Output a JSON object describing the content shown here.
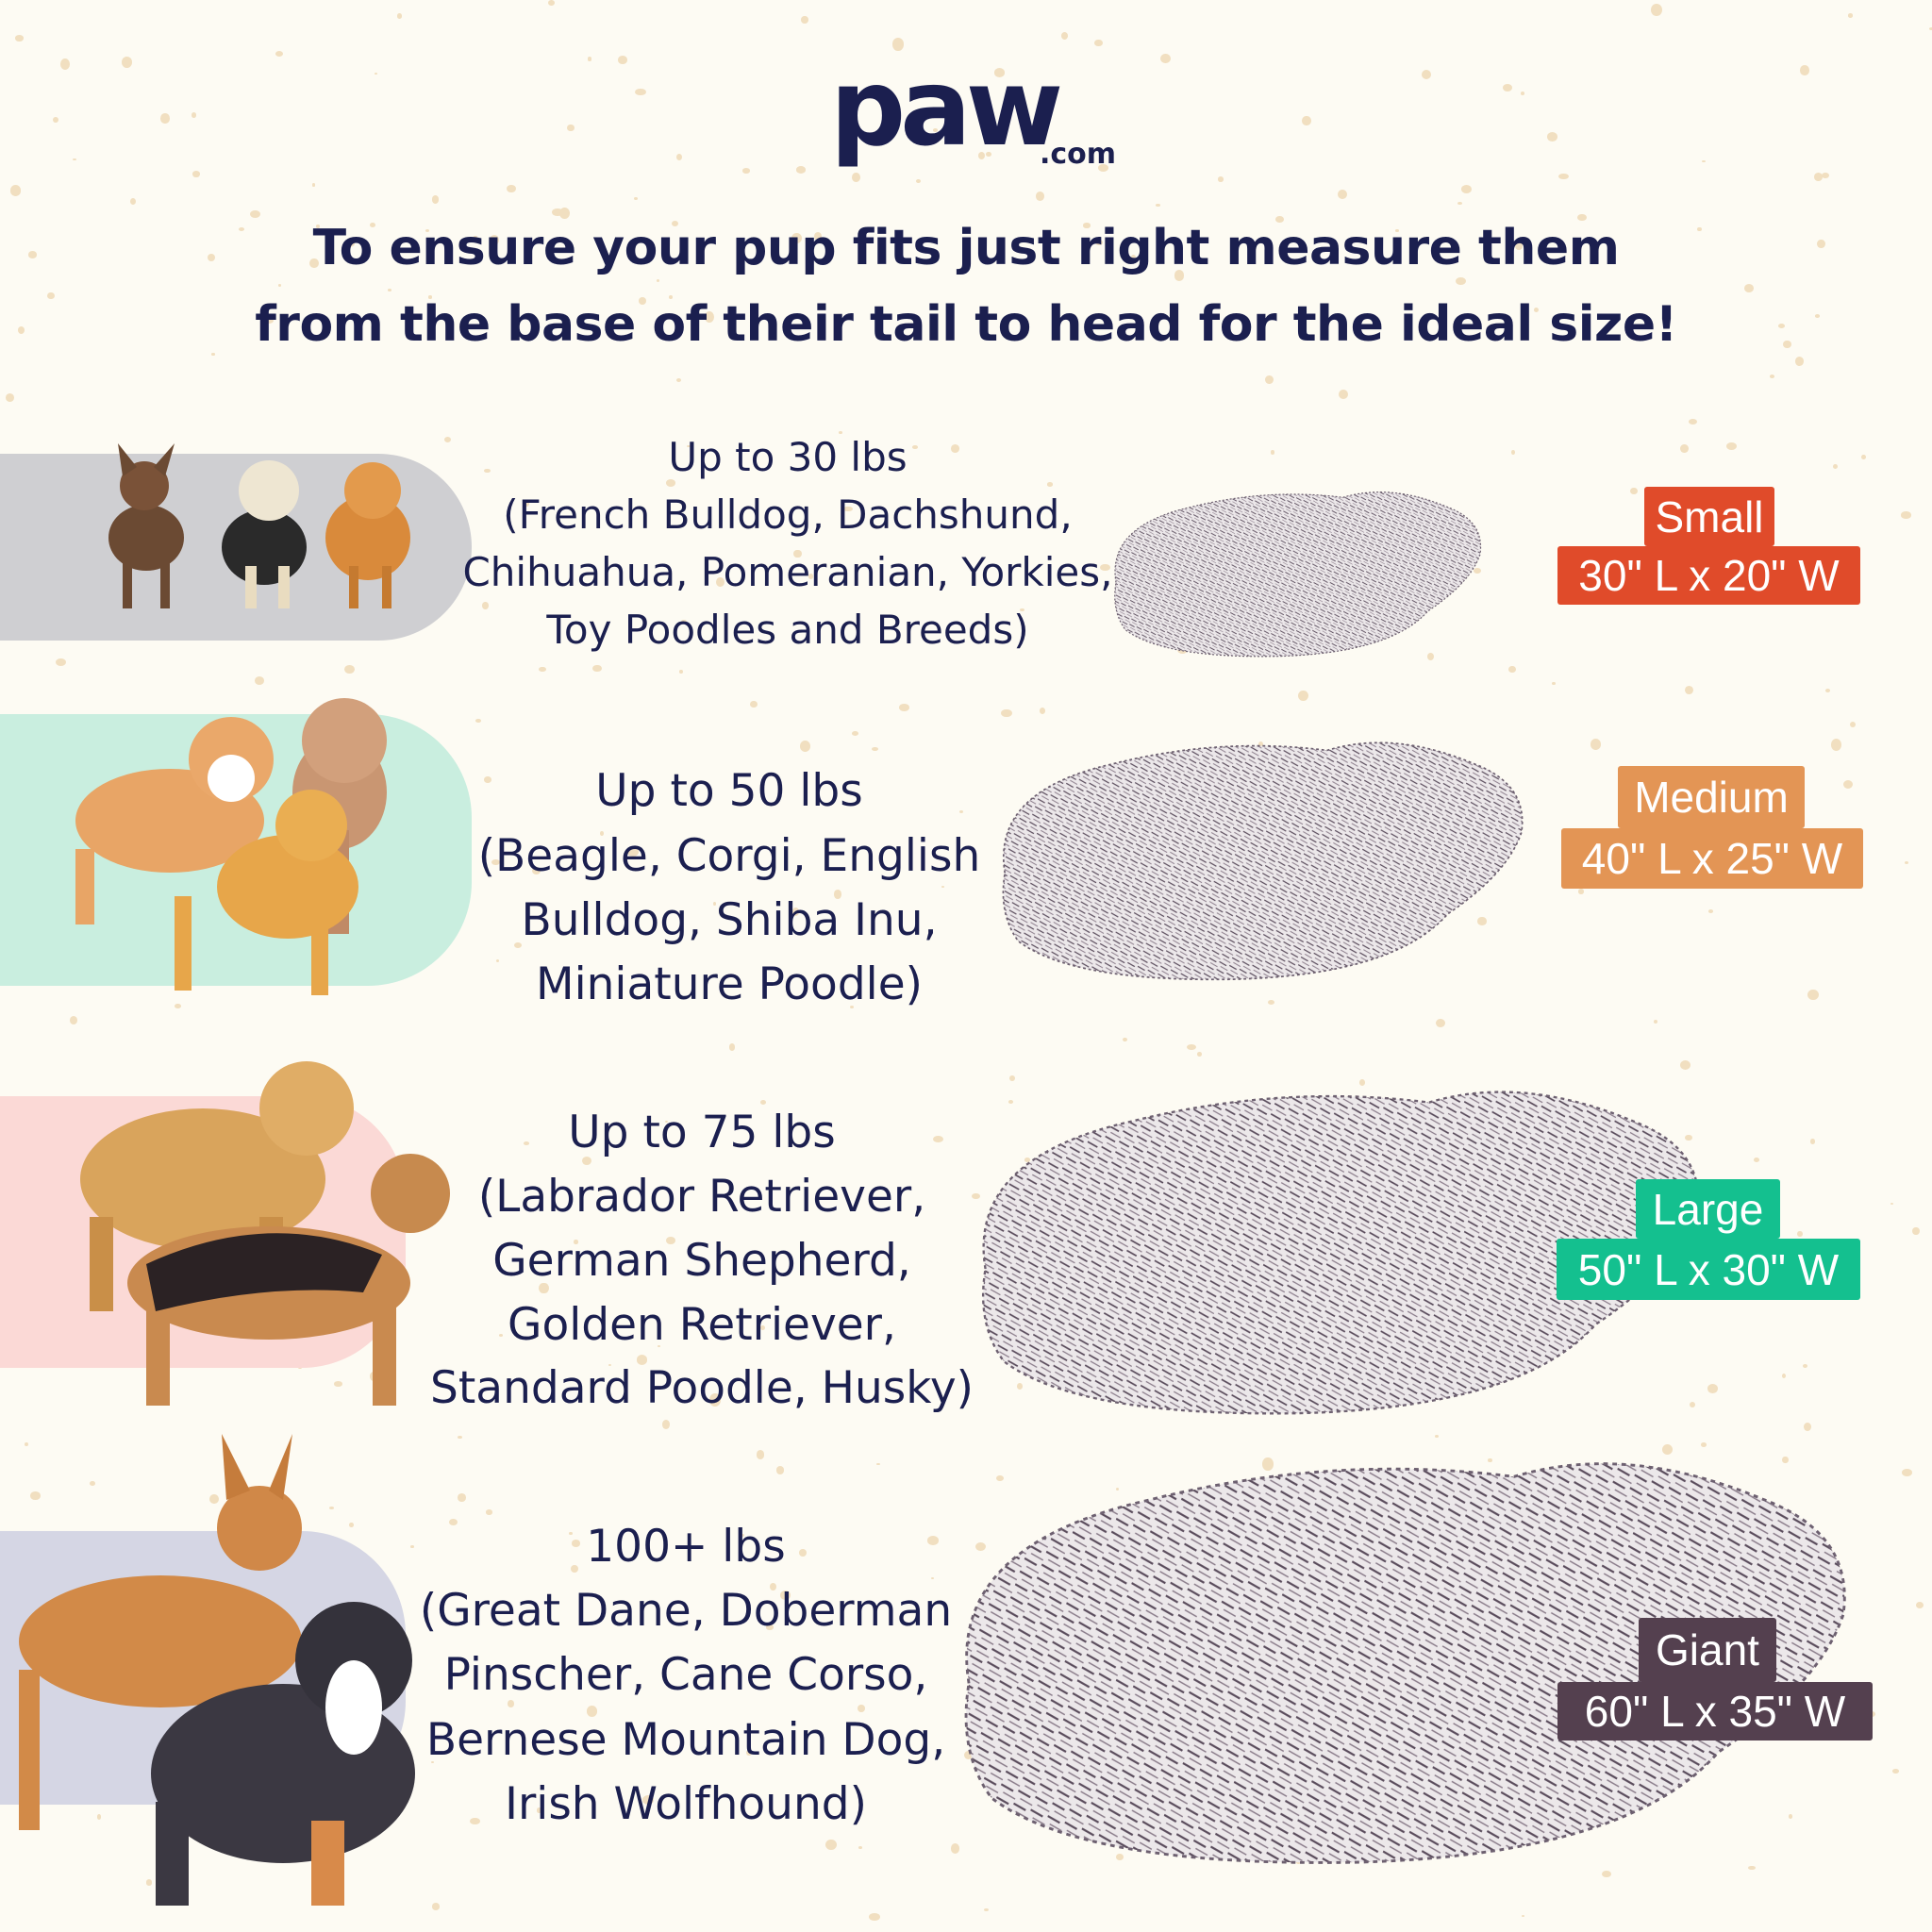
{
  "brand": {
    "logo_text": "paw",
    ".com": ".com",
    "colors": {
      "navy": "#1b1f4f",
      "background": "#fdfbf3"
    }
  },
  "heading": {
    "line1": "To ensure your pup fits just right measure them",
    "line2": "from the base of their tail to head for the ideal size!"
  },
  "sizes": [
    {
      "weight": "Up to 30 lbs",
      "breeds": [
        "(French Bulldog, Dachshund,",
        "Chihuahua, Pomeranian, Yorkies,",
        "Toy Poodles and Breeds)"
      ],
      "name": "Small",
      "dimensions": "30\" L x 20\" W",
      "color": "#e04b2a",
      "band_color": "#cfcfd2"
    },
    {
      "weight": "Up to 50 lbs",
      "breeds": [
        "(Beagle, Corgi, English",
        "Bulldog, Shiba Inu,",
        "Miniature Poodle)"
      ],
      "name": "Medium",
      "dimensions": "40\" L x 25\" W",
      "color": "#e39555",
      "band_color": "#c9eedf"
    },
    {
      "weight": "Up to 75 lbs",
      "breeds": [
        "(Labrador Retriever,",
        "German Shepherd,",
        "Golden Retriever,",
        "Standard Poodle, Husky)"
      ],
      "name": "Large",
      "dimensions": "50\" L x 30\" W",
      "color": "#14c08f",
      "band_color": "#fbd9d6"
    },
    {
      "weight": "100+ lbs",
      "breeds": [
        "(Great Dane, Doberman",
        "Pinscher, Cane Corso,",
        "Bernese Mountain Dog,",
        "Irish Wolfhound)"
      ],
      "name": "Giant",
      "dimensions": "60\" L x 35\" W",
      "color": "#54404f",
      "band_color": "#d5d6e4"
    }
  ]
}
